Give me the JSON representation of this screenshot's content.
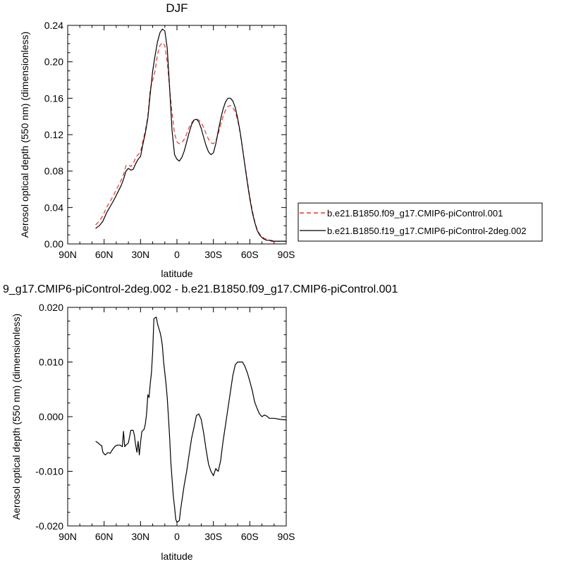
{
  "chart_data": [
    {
      "type": "line",
      "title": "DJF",
      "xlabel": "latitude",
      "ylabel": "Aerosol optical depth (550 nm) (dimensionless)",
      "xlim": [
        90,
        -90
      ],
      "ylim": [
        0,
        0.24
      ],
      "x_ticks": [
        {
          "value": 90,
          "label": "90N"
        },
        {
          "value": 60,
          "label": "60N"
        },
        {
          "value": 30,
          "label": "30N"
        },
        {
          "value": 0,
          "label": "0"
        },
        {
          "value": -30,
          "label": "30S"
        },
        {
          "value": -60,
          "label": "60S"
        },
        {
          "value": -90,
          "label": "90S"
        }
      ],
      "y_ticks": [
        {
          "value": 0,
          "label": "0.00"
        },
        {
          "value": 0.04,
          "label": "0.04"
        },
        {
          "value": 0.08,
          "label": "0.08"
        },
        {
          "value": 0.12,
          "label": "0.12"
        },
        {
          "value": 0.16,
          "label": "0.16"
        },
        {
          "value": 0.2,
          "label": "0.20"
        },
        {
          "value": 0.24,
          "label": "0.24"
        }
      ],
      "legend_position": "right",
      "series": [
        {
          "name": "b.e21.B1850.f09_g17.CMIP6-piControl.001",
          "color": "#e8332b",
          "dash": "dashed",
          "x": [
            67,
            64,
            61,
            58,
            55,
            52,
            49,
            46,
            44,
            42,
            40,
            38,
            36,
            34,
            32,
            30,
            28,
            26,
            24,
            22,
            20,
            18,
            16,
            14,
            12,
            10,
            8,
            6,
            4,
            2,
            0,
            -2,
            -4,
            -6,
            -8,
            -10,
            -12,
            -14,
            -16,
            -18,
            -20,
            -22,
            -24,
            -26,
            -28,
            -30,
            -32,
            -34,
            -36,
            -38,
            -40,
            -42,
            -44,
            -46,
            -48,
            -50,
            -52,
            -54,
            -56,
            -58,
            -60,
            -62,
            -64,
            -66,
            -68,
            -70,
            -72,
            -74,
            -76,
            -78,
            -80,
            -85,
            -90
          ],
          "y": [
            0.021,
            0.025,
            0.031,
            0.04,
            0.047,
            0.054,
            0.062,
            0.07,
            0.076,
            0.086,
            0.087,
            0.085,
            0.088,
            0.095,
            0.098,
            0.101,
            0.113,
            0.125,
            0.14,
            0.17,
            0.18,
            0.19,
            0.208,
            0.218,
            0.221,
            0.218,
            0.2,
            0.17,
            0.143,
            0.121,
            0.112,
            0.11,
            0.111,
            0.115,
            0.121,
            0.128,
            0.133,
            0.136,
            0.137,
            0.136,
            0.133,
            0.128,
            0.121,
            0.115,
            0.111,
            0.11,
            0.113,
            0.121,
            0.131,
            0.14,
            0.147,
            0.151,
            0.152,
            0.15,
            0.145,
            0.136,
            0.122,
            0.105,
            0.087,
            0.069,
            0.052,
            0.037,
            0.025,
            0.016,
            0.011,
            0.008,
            0.006,
            0.005,
            0.004,
            0.004,
            0.003,
            0.003,
            0.003
          ]
        },
        {
          "name": "b.e21.B1850.f19_g17.CMIP6-piControl-2deg.002",
          "color": "#000000",
          "dash": "solid",
          "x": [
            67,
            64,
            61,
            58,
            55,
            52,
            49,
            46,
            44,
            42,
            40,
            38,
            36,
            34,
            32,
            30,
            28,
            26,
            24,
            22,
            20,
            18,
            16,
            14,
            12,
            10,
            8,
            6,
            4,
            2,
            0,
            -2,
            -4,
            -6,
            -8,
            -10,
            -12,
            -14,
            -16,
            -18,
            -20,
            -22,
            -24,
            -26,
            -28,
            -30,
            -32,
            -34,
            -36,
            -38,
            -40,
            -42,
            -44,
            -46,
            -48,
            -50,
            -52,
            -54,
            -56,
            -58,
            -60,
            -62,
            -64,
            -66,
            -68,
            -70,
            -72,
            -74,
            -76,
            -78,
            -80,
            -85,
            -90
          ],
          "y": [
            0.017,
            0.02,
            0.025,
            0.034,
            0.041,
            0.048,
            0.056,
            0.064,
            0.071,
            0.08,
            0.083,
            0.081,
            0.082,
            0.088,
            0.093,
            0.096,
            0.11,
            0.122,
            0.138,
            0.165,
            0.19,
            0.207,
            0.222,
            0.232,
            0.236,
            0.234,
            0.215,
            0.17,
            0.124,
            0.098,
            0.093,
            0.091,
            0.095,
            0.102,
            0.112,
            0.122,
            0.131,
            0.136,
            0.137,
            0.134,
            0.127,
            0.117,
            0.108,
            0.101,
            0.098,
            0.1,
            0.11,
            0.124,
            0.137,
            0.148,
            0.156,
            0.16,
            0.16,
            0.157,
            0.15,
            0.138,
            0.123,
            0.105,
            0.086,
            0.067,
            0.05,
            0.035,
            0.024,
            0.015,
            0.01,
            0.007,
            0.005,
            0.004,
            0.004,
            0.003,
            0.003,
            0.003,
            0.003
          ]
        }
      ]
    },
    {
      "type": "line",
      "title": "9_g17.CMIP6-piControl-2deg.002 - b.e21.B1850.f09_g17.CMIP6-piControl.001",
      "xlabel": "latitude",
      "ylabel": "Aerosol optical depth (550 nm) (dimensionless)",
      "xlim": [
        90,
        -90
      ],
      "ylim": [
        -0.02,
        0.02
      ],
      "x_ticks": [
        {
          "value": 90,
          "label": "90N"
        },
        {
          "value": 60,
          "label": "60N"
        },
        {
          "value": 30,
          "label": "30N"
        },
        {
          "value": 0,
          "label": "0"
        },
        {
          "value": -30,
          "label": "30S"
        },
        {
          "value": -60,
          "label": "60S"
        },
        {
          "value": -90,
          "label": "90S"
        }
      ],
      "y_ticks": [
        {
          "value": -0.02,
          "label": "-0.020"
        },
        {
          "value": -0.01,
          "label": "-0.010"
        },
        {
          "value": 0,
          "label": "0.000"
        },
        {
          "value": 0.01,
          "label": "0.010"
        },
        {
          "value": 0.02,
          "label": "0.020"
        }
      ],
      "series": [
        {
          "color": "#000000",
          "dash": "solid",
          "x": [
            67,
            65,
            63,
            62,
            61,
            60,
            59,
            58,
            57,
            55,
            53,
            51,
            49,
            47,
            45,
            44,
            43,
            42,
            41,
            40,
            38,
            36,
            35,
            34,
            33,
            32,
            31,
            30,
            29,
            28,
            27,
            26,
            25,
            24,
            23,
            22,
            21,
            20,
            19,
            18,
            17,
            16,
            15,
            14,
            13,
            12,
            11,
            10,
            9,
            8,
            7,
            6,
            5,
            4,
            3,
            2,
            1,
            0,
            -1,
            -2,
            -3,
            -4,
            -5,
            -6,
            -8,
            -10,
            -12,
            -14,
            -16,
            -18,
            -20,
            -22,
            -24,
            -26,
            -28,
            -30,
            -32,
            -33,
            -34,
            -36,
            -38,
            -40,
            -42,
            -44,
            -46,
            -48,
            -50,
            -52,
            -54,
            -56,
            -58,
            -60,
            -62,
            -64,
            -66,
            -68,
            -70,
            -72,
            -74,
            -76,
            -80,
            -85,
            -90
          ],
          "y": [
            -0.0045,
            -0.0048,
            -0.0052,
            -0.0053,
            -0.0065,
            -0.0068,
            -0.007,
            -0.0068,
            -0.0066,
            -0.0067,
            -0.006,
            -0.0054,
            -0.0052,
            -0.0052,
            -0.0055,
            -0.0027,
            -0.0055,
            -0.0052,
            -0.005,
            -0.0048,
            -0.0025,
            -0.0025,
            -0.0035,
            -0.0052,
            -0.0065,
            -0.0045,
            -0.007,
            -0.0048,
            -0.0028,
            -0.0025,
            -0.0023,
            -0.0013,
            0.0005,
            0.004,
            0.0035,
            0.006,
            0.008,
            0.012,
            0.0179,
            0.0181,
            0.0182,
            0.017,
            0.0162,
            0.0155,
            0.0145,
            0.013,
            0.01,
            0.008,
            0.006,
            0.0035,
            0.0,
            -0.004,
            -0.0085,
            -0.0115,
            -0.0145,
            -0.0165,
            -0.0188,
            -0.0193,
            -0.0192,
            -0.019,
            -0.017,
            -0.0155,
            -0.014,
            -0.0125,
            -0.01,
            -0.007,
            -0.004,
            -0.002,
            0.0002,
            0.0005,
            -0.0005,
            -0.003,
            -0.006,
            -0.0087,
            -0.01,
            -0.0108,
            -0.0095,
            -0.0098,
            -0.01,
            -0.008,
            -0.0045,
            -0.0015,
            0.0015,
            0.0045,
            0.0075,
            0.0095,
            0.01,
            0.01,
            0.01,
            0.0092,
            0.008,
            0.0065,
            0.0048,
            0.0027,
            0.0015,
            0.0005,
            0.0,
            0.0003,
            0.0001,
            -0.0003,
            -0.0003,
            -0.0005,
            -0.0006
          ]
        }
      ]
    }
  ]
}
